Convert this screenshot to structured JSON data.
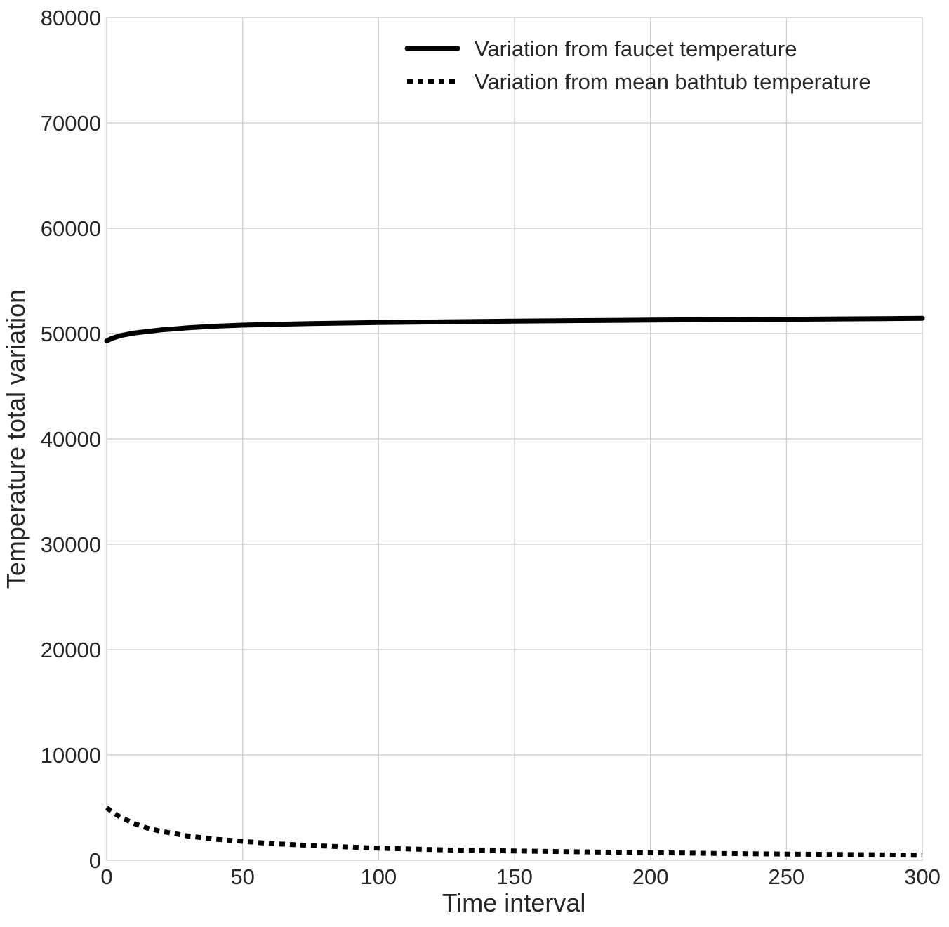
{
  "chart_data": {
    "type": "line",
    "title": "",
    "xlabel": "Time interval",
    "ylabel": "Temperature total variation",
    "xlim": [
      0,
      300
    ],
    "ylim": [
      0,
      80000
    ],
    "x_ticks": [
      0,
      50,
      100,
      150,
      200,
      250,
      300
    ],
    "x_tick_labels": [
      "0",
      "50",
      "100",
      "150",
      "200",
      "250",
      "300"
    ],
    "y_ticks": [
      0,
      10000,
      20000,
      30000,
      40000,
      50000,
      60000,
      70000,
      80000
    ],
    "y_tick_labels": [
      "0",
      "10000",
      "20000",
      "30000",
      "40000",
      "50000",
      "60000",
      "70000",
      "80000"
    ],
    "grid": true,
    "legend_position": "top-right",
    "x": [
      0,
      2,
      5,
      10,
      15,
      20,
      30,
      40,
      50,
      60,
      75,
      100,
      125,
      150,
      175,
      200,
      225,
      250,
      275,
      300
    ],
    "series": [
      {
        "name": "Variation from faucet temperature",
        "style": "solid",
        "color": "#000000",
        "values": [
          49300,
          49550,
          49800,
          50050,
          50200,
          50350,
          50550,
          50700,
          50800,
          50870,
          50950,
          51050,
          51120,
          51180,
          51230,
          51280,
          51320,
          51360,
          51400,
          51450
        ]
      },
      {
        "name": "Variation from mean bathtub temperature",
        "style": "dashed",
        "color": "#000000",
        "values": [
          5000,
          4600,
          4100,
          3500,
          3050,
          2750,
          2300,
          2000,
          1800,
          1600,
          1400,
          1150,
          980,
          880,
          800,
          720,
          650,
          590,
          540,
          480
        ]
      }
    ]
  }
}
